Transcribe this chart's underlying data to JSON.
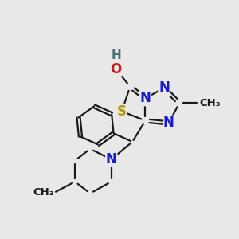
{
  "background_color": "#e8e8e8",
  "bond_color": "#1a1a1a",
  "bond_width": 1.6,
  "atom_colors": {
    "N": "#1a1acc",
    "O": "#cc1a1a",
    "S": "#b8960a",
    "H": "#4a7070",
    "C": "#1a1a1a"
  },
  "figsize": [
    3.0,
    3.0
  ],
  "dpi": 100
}
